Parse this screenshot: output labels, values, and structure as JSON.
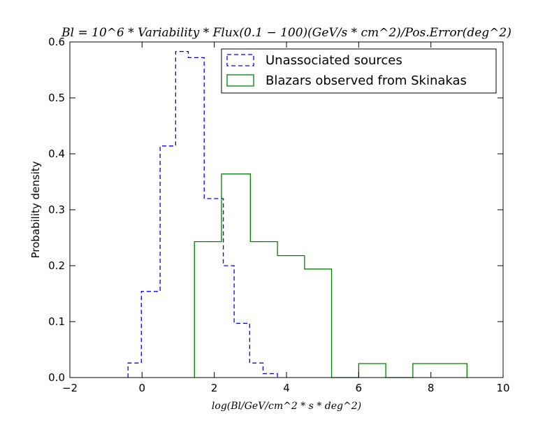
{
  "chart_data": {
    "type": "histogram",
    "title": "Bl = 10^6 * Variability * Flux(0.1 − 100)(GeV/s * cm^2)/Pos.Error(deg^2)",
    "xlabel": "log(Bl/GeV/cm^2 * s * deg^2)",
    "ylabel": "Probability density",
    "xlim": [
      -2,
      10
    ],
    "ylim": [
      0,
      0.6
    ],
    "xticks": [
      "−2",
      "0",
      "2",
      "4",
      "6",
      "8",
      "10"
    ],
    "yticks": [
      "0.0",
      "0.1",
      "0.2",
      "0.3",
      "0.4",
      "0.5",
      "0.6"
    ],
    "legend_position": "top-right",
    "series": [
      {
        "name": "Unassociated sources",
        "color": "#0000ff",
        "style": "dashed",
        "edges": [
          -0.39,
          -0.02,
          0.5,
          0.93,
          1.28,
          1.72,
          2.25,
          2.55,
          2.98,
          3.35,
          3.75
        ],
        "values": [
          0.026,
          0.154,
          0.414,
          0.583,
          0.572,
          0.32,
          0.2,
          0.097,
          0.026,
          0.007
        ]
      },
      {
        "name": "Blazars observed from Skinakas",
        "color": "#008000",
        "style": "solid",
        "edges": [
          1.45,
          2.2,
          3.0,
          3.75,
          4.5,
          5.25,
          6.0,
          6.75,
          7.5,
          8.25,
          9.0
        ],
        "values": [
          0.243,
          0.364,
          0.243,
          0.218,
          0.194,
          0.0,
          0.025,
          0.0,
          0.025,
          0.025
        ]
      }
    ]
  }
}
